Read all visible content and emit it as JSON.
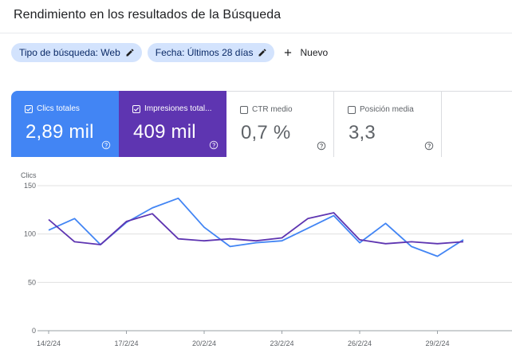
{
  "header": {
    "title": "Rendimiento en los resultados de la Búsqueda"
  },
  "filters": {
    "chips": [
      {
        "label": "Tipo de búsqueda: Web",
        "icon": "pencil-icon"
      },
      {
        "label": "Fecha: Últimos 28 días",
        "icon": "pencil-icon"
      }
    ],
    "new_label": "Nuevo",
    "new_icon": "plus-icon"
  },
  "metrics": [
    {
      "label": "Clics totales",
      "value": "2,89 mil",
      "checked": true,
      "color": "#4285f4"
    },
    {
      "label": "Impresiones total...",
      "value": "409 mil",
      "checked": true,
      "color": "#5e35b1"
    },
    {
      "label": "CTR medio",
      "value": "0,7 %",
      "checked": false,
      "color": "#ffffff"
    },
    {
      "label": "Posición media",
      "value": "3,3",
      "checked": false,
      "color": "#ffffff"
    }
  ],
  "chart_data": {
    "type": "line",
    "ylabel": "Clics",
    "ylim": [
      0,
      150
    ],
    "yticks": [
      "150",
      "100",
      "50",
      "0"
    ],
    "xticks": [
      "14/2/24",
      "17/2/24",
      "20/2/24",
      "23/2/24",
      "26/2/24",
      "29/2/24"
    ],
    "x": [
      "14/2/24",
      "15/2/24",
      "16/2/24",
      "17/2/24",
      "18/2/24",
      "19/2/24",
      "20/2/24",
      "21/2/24",
      "22/2/24",
      "23/2/24",
      "24/2/24",
      "25/2/24",
      "26/2/24",
      "27/2/24",
      "28/2/24",
      "29/2/24",
      "1/3/24"
    ],
    "series": [
      {
        "color": "#4285f4",
        "values": [
          104,
          116,
          89,
          112,
          127,
          137,
          107,
          87,
          91,
          93,
          106,
          119,
          91,
          111,
          87,
          77,
          94
        ]
      },
      {
        "color": "#5e35b1",
        "values": [
          115,
          92,
          89,
          113,
          121,
          95,
          93,
          95,
          93,
          96,
          116,
          122,
          94,
          90,
          92,
          90,
          92
        ]
      }
    ],
    "grid": true,
    "legend": "none"
  }
}
